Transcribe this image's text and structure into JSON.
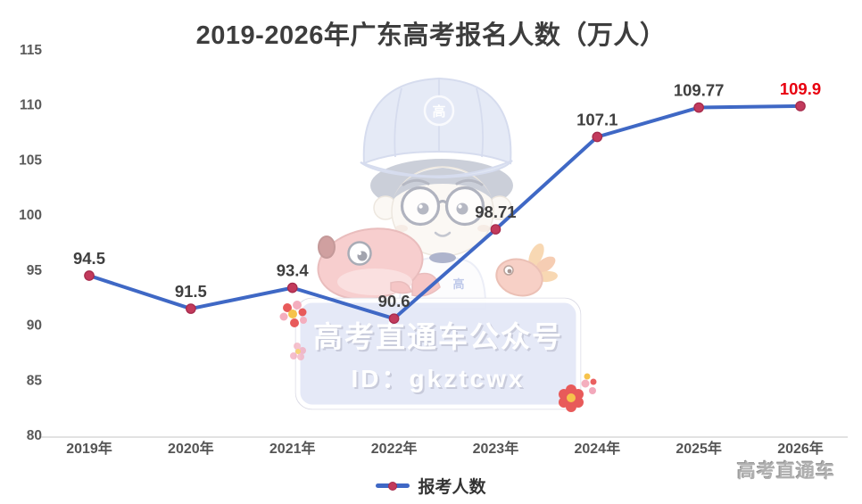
{
  "title": "2019-2026年广东高考报名人数（万人）",
  "chart_data": {
    "type": "line",
    "categories": [
      "2019年",
      "2020年",
      "2021年",
      "2022年",
      "2023年",
      "2024年",
      "2025年",
      "2026年"
    ],
    "series": [
      {
        "name": "报考人数",
        "values": [
          94.5,
          91.5,
          93.4,
          90.6,
          98.71,
          107.1,
          109.77,
          109.9
        ]
      }
    ],
    "labels": [
      "94.5",
      "91.5",
      "93.4",
      "90.6",
      "98.71",
      "107.1",
      "109.77",
      "109.9"
    ],
    "highlight_index": 7,
    "ylim": [
      80,
      115
    ],
    "yticks": [
      80,
      85,
      90,
      95,
      100,
      105,
      110,
      115
    ],
    "xlabel": "",
    "ylabel": "",
    "grid": false,
    "legend_position": "bottom",
    "colors": {
      "line": "#3F68C5",
      "marker": "#C23A5C",
      "marker_edge": "#A62B4C",
      "label": "#3F3F3F",
      "label_highlight": "#E8000F",
      "axis_line": "#D8D8D8"
    }
  },
  "legend": {
    "label": "报考人数"
  },
  "watermark": {
    "line1": "高考直通车公众号",
    "line2": "ID：gkztcwx",
    "cap_badge": "高",
    "shirt_char": "高"
  },
  "footer": {
    "brand": "高考直通车"
  }
}
